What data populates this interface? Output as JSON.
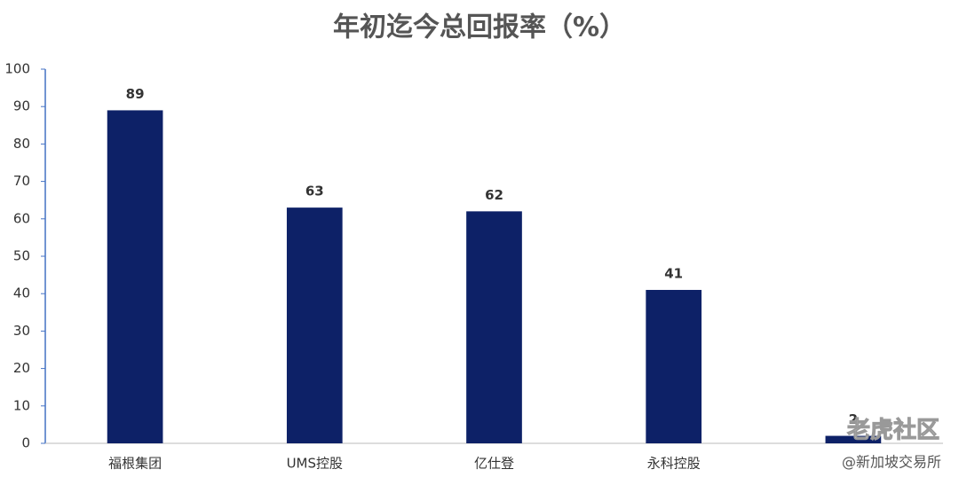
{
  "chart_data": {
    "type": "bar",
    "title": "年初迄今总回报率（%）",
    "categories": [
      "福根集团",
      "UMS控股",
      "亿仕登",
      "永科控股",
      null
    ],
    "values": [
      89,
      63,
      62,
      41,
      2
    ],
    "color": "#0d2167",
    "ylim": [
      0,
      100
    ],
    "yticks": [
      0,
      10,
      20,
      30,
      40,
      50,
      60,
      70,
      80,
      90,
      100
    ],
    "grid": false,
    "watermark": [
      "老虎社区",
      "@新加坡交易所"
    ]
  }
}
